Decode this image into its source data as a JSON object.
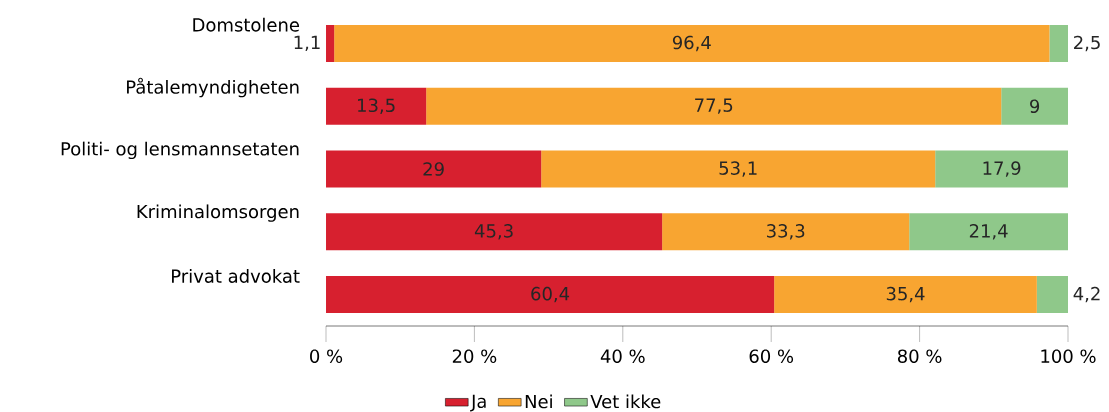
{
  "chart_data": {
    "type": "bar",
    "orientation": "horizontal",
    "stacked": true,
    "categories": [
      "Domstolene",
      "Påtalemyndigheten",
      "Politi- og lensmannsetaten",
      "Kriminalomsorgen",
      "Privat advokat"
    ],
    "series": [
      {
        "name": "Ja",
        "color": "#d7202f",
        "values": [
          1.1,
          13.5,
          29,
          45.3,
          60.4
        ],
        "value_labels": [
          "1,1",
          "13,5",
          "29",
          "45,3",
          "60,4"
        ]
      },
      {
        "name": "Nei",
        "color": "#f8a531",
        "values": [
          96.4,
          77.5,
          53.1,
          33.3,
          35.4
        ],
        "value_labels": [
          "96,4",
          "77,5",
          "53,1",
          "33,3",
          "35,4"
        ]
      },
      {
        "name": "Vet ikke",
        "color": "#8fc88a",
        "values": [
          2.5,
          9,
          17.9,
          21.4,
          4.2
        ],
        "value_labels": [
          "2,5",
          "9",
          "17,9",
          "21,4",
          "4,2"
        ]
      }
    ],
    "xlim": [
      0,
      100
    ],
    "xticks": [
      {
        "value": 0,
        "label": "0 %"
      },
      {
        "value": 20,
        "label": "20 %"
      },
      {
        "value": 40,
        "label": "40 %"
      },
      {
        "value": 60,
        "label": "60 %"
      },
      {
        "value": 80,
        "label": "80 %"
      },
      {
        "value": 100,
        "label": "100 %"
      }
    ],
    "legend": "bottom"
  }
}
